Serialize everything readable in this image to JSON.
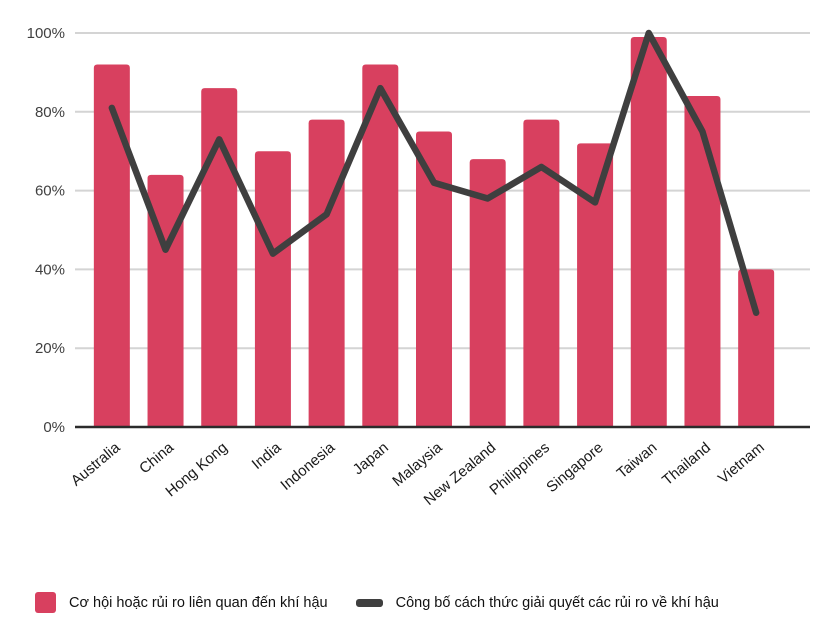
{
  "chart_data": {
    "type": "bar",
    "subtype": "bar-line-combo",
    "title": "",
    "xlabel": "",
    "ylabel": "",
    "categories": [
      "Australia",
      "China",
      "Hong Kong",
      "India",
      "Indonesia",
      "Japan",
      "Malaysia",
      "New Zealand",
      "Philippines",
      "Singapore",
      "Taiwan",
      "Thailand",
      "Vietnam"
    ],
    "series": [
      {
        "name": "Cơ hội hoặc rủi ro liên quan đến khí hậu",
        "type": "bar",
        "color": "#D8405F",
        "values": [
          92,
          64,
          86,
          70,
          78,
          92,
          75,
          68,
          78,
          72,
          99,
          84,
          40
        ]
      },
      {
        "name": "Công bố cách thức giải quyết các rủi ro về khí hậu",
        "type": "line",
        "color": "#3F3F3F",
        "values": [
          81,
          45,
          73,
          44,
          54,
          86,
          62,
          58,
          66,
          57,
          100,
          75,
          29
        ]
      }
    ],
    "ylim": [
      0,
      100
    ],
    "y_ticks": [
      "0%",
      "20%",
      "40%",
      "60%",
      "80%",
      "100%"
    ],
    "y_tick_step": 20,
    "grid": "horizontal",
    "legend_position": "bottom",
    "x_label_rotation_deg": -40
  },
  "style": {
    "bar_color": "#D8405F",
    "line_color": "#3F3F3F",
    "gridline_color": "#D4D4D4",
    "axis_line_color": "#2B2B2B",
    "tick_text_color": "#404040",
    "background": "#FFFFFF"
  }
}
